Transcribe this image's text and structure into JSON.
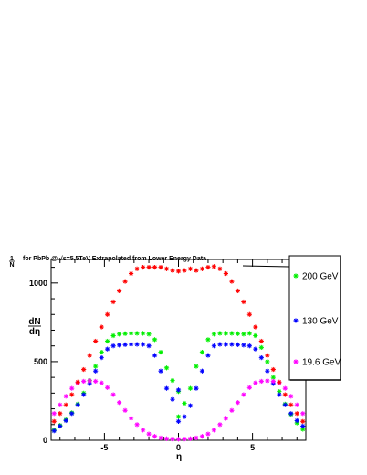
{
  "chart_data": {
    "type": "scatter",
    "title_frac_num": "1",
    "title_frac_den": "N",
    "title_text": "for PbPb @ √s=5.5TeV Extrapolated from Lower Energy Data",
    "ylabel_num": "dN",
    "ylabel_den": "dη",
    "xlabel": "η",
    "xlim": [
      -8.6,
      8.6
    ],
    "ylim": [
      0,
      1150
    ],
    "x_ticks": [
      -5,
      0,
      5
    ],
    "x_tick_labels": [
      "-5",
      "0",
      "5"
    ],
    "y_ticks": [
      0,
      500,
      1000
    ],
    "y_tick_labels": [
      "0",
      "500",
      "1000"
    ],
    "legend_position": "right",
    "series": [
      {
        "name": "200 GeV",
        "color": "#00ee00",
        "marker": "star",
        "points": [
          [
            -8.4,
            65
          ],
          [
            -8.0,
            95
          ],
          [
            -7.6,
            130
          ],
          [
            -7.2,
            175
          ],
          [
            -6.8,
            230
          ],
          [
            -6.4,
            300
          ],
          [
            -6.0,
            380
          ],
          [
            -5.6,
            470
          ],
          [
            -5.2,
            560
          ],
          [
            -4.8,
            630
          ],
          [
            -4.4,
            665
          ],
          [
            -4.0,
            675
          ],
          [
            -3.6,
            678
          ],
          [
            -3.2,
            680
          ],
          [
            -2.8,
            680
          ],
          [
            -2.4,
            680
          ],
          [
            -2.0,
            675
          ],
          [
            -1.6,
            640
          ],
          [
            -1.2,
            560
          ],
          [
            -0.8,
            460
          ],
          [
            -0.4,
            380
          ],
          [
            0.0,
            310
          ],
          [
            0.0,
            150
          ],
          [
            0.4,
            235
          ],
          [
            0.8,
            330
          ],
          [
            1.2,
            470
          ],
          [
            1.6,
            560
          ],
          [
            2.0,
            640
          ],
          [
            2.4,
            675
          ],
          [
            2.8,
            680
          ],
          [
            3.2,
            680
          ],
          [
            3.6,
            680
          ],
          [
            4.0,
            678
          ],
          [
            4.4,
            675
          ],
          [
            4.8,
            680
          ],
          [
            5.2,
            665
          ],
          [
            5.6,
            590
          ],
          [
            6.0,
            500
          ],
          [
            6.4,
            400
          ],
          [
            6.8,
            310
          ],
          [
            7.2,
            230
          ],
          [
            7.6,
            165
          ],
          [
            8.0,
            110
          ],
          [
            8.4,
            70
          ]
        ]
      },
      {
        "name": "130 GeV",
        "color": "#0000ff",
        "marker": "star",
        "points": [
          [
            -8.4,
            60
          ],
          [
            -8.0,
            90
          ],
          [
            -7.6,
            125
          ],
          [
            -7.2,
            170
          ],
          [
            -6.8,
            225
          ],
          [
            -6.4,
            290
          ],
          [
            -6.0,
            360
          ],
          [
            -5.6,
            440
          ],
          [
            -5.2,
            525
          ],
          [
            -4.8,
            580
          ],
          [
            -4.4,
            600
          ],
          [
            -4.0,
            605
          ],
          [
            -3.6,
            608
          ],
          [
            -3.2,
            610
          ],
          [
            -2.8,
            610
          ],
          [
            -2.4,
            610
          ],
          [
            -2.0,
            600
          ],
          [
            -1.6,
            540
          ],
          [
            -1.2,
            440
          ],
          [
            -0.8,
            330
          ],
          [
            -0.4,
            260
          ],
          [
            0.0,
            120
          ],
          [
            0.0,
            320
          ],
          [
            0.4,
            150
          ],
          [
            0.8,
            220
          ],
          [
            1.2,
            330
          ],
          [
            1.6,
            440
          ],
          [
            2.0,
            540
          ],
          [
            2.4,
            600
          ],
          [
            2.8,
            610
          ],
          [
            3.2,
            610
          ],
          [
            3.6,
            610
          ],
          [
            4.0,
            608
          ],
          [
            4.4,
            605
          ],
          [
            4.8,
            600
          ],
          [
            5.2,
            580
          ],
          [
            5.6,
            525
          ],
          [
            6.0,
            440
          ],
          [
            6.4,
            360
          ],
          [
            6.8,
            290
          ],
          [
            7.2,
            225
          ],
          [
            7.6,
            170
          ],
          [
            8.0,
            125
          ],
          [
            8.4,
            90
          ]
        ]
      },
      {
        "name": "19.6 GeV",
        "color": "#ff00ff",
        "marker": "star",
        "points": [
          [
            -8.4,
            170
          ],
          [
            -8.0,
            225
          ],
          [
            -7.6,
            280
          ],
          [
            -7.2,
            330
          ],
          [
            -6.8,
            365
          ],
          [
            -6.4,
            375
          ],
          [
            -6.0,
            378
          ],
          [
            -5.6,
            375
          ],
          [
            -5.2,
            365
          ],
          [
            -4.8,
            335
          ],
          [
            -4.4,
            290
          ],
          [
            -4.0,
            240
          ],
          [
            -3.6,
            190
          ],
          [
            -3.2,
            140
          ],
          [
            -2.8,
            100
          ],
          [
            -2.4,
            65
          ],
          [
            -2.0,
            40
          ],
          [
            -1.6,
            25
          ],
          [
            -1.2,
            15
          ],
          [
            -0.8,
            10
          ],
          [
            -0.4,
            8
          ],
          [
            0.0,
            7
          ],
          [
            0.4,
            8
          ],
          [
            0.8,
            10
          ],
          [
            1.2,
            15
          ],
          [
            1.6,
            25
          ],
          [
            2.0,
            40
          ],
          [
            2.4,
            65
          ],
          [
            2.8,
            100
          ],
          [
            3.2,
            140
          ],
          [
            3.6,
            190
          ],
          [
            4.0,
            240
          ],
          [
            4.4,
            290
          ],
          [
            4.8,
            335
          ],
          [
            5.2,
            365
          ],
          [
            5.6,
            375
          ],
          [
            6.0,
            378
          ],
          [
            6.4,
            375
          ],
          [
            6.8,
            365
          ],
          [
            7.2,
            330
          ],
          [
            7.6,
            280
          ],
          [
            8.0,
            225
          ],
          [
            8.4,
            170
          ]
        ]
      },
      {
        "name": "",
        "color": "#ff0000",
        "marker": "star",
        "points": [
          [
            -8.4,
            120
          ],
          [
            -8.0,
            170
          ],
          [
            -7.6,
            225
          ],
          [
            -7.2,
            290
          ],
          [
            -6.8,
            370
          ],
          [
            -6.4,
            450
          ],
          [
            -6.0,
            540
          ],
          [
            -5.6,
            630
          ],
          [
            -5.2,
            720
          ],
          [
            -4.8,
            800
          ],
          [
            -4.4,
            880
          ],
          [
            -4.0,
            950
          ],
          [
            -3.6,
            1010
          ],
          [
            -3.2,
            1060
          ],
          [
            -2.8,
            1090
          ],
          [
            -2.4,
            1100
          ],
          [
            -2.0,
            1100
          ],
          [
            -1.6,
            1100
          ],
          [
            -1.2,
            1100
          ],
          [
            -0.8,
            1090
          ],
          [
            -0.4,
            1080
          ],
          [
            0.0,
            1075
          ],
          [
            0.4,
            1080
          ],
          [
            0.8,
            1090
          ],
          [
            1.2,
            1080
          ],
          [
            1.6,
            1090
          ],
          [
            2.0,
            1100
          ],
          [
            2.4,
            1105
          ],
          [
            2.8,
            1090
          ],
          [
            3.2,
            1060
          ],
          [
            3.6,
            1010
          ],
          [
            4.0,
            950
          ],
          [
            4.4,
            880
          ],
          [
            4.8,
            800
          ],
          [
            5.2,
            720
          ],
          [
            5.6,
            630
          ],
          [
            6.0,
            540
          ],
          [
            6.4,
            450
          ],
          [
            6.8,
            370
          ],
          [
            7.2,
            290
          ],
          [
            7.6,
            225
          ],
          [
            8.0,
            170
          ],
          [
            8.4,
            120
          ]
        ]
      }
    ]
  }
}
